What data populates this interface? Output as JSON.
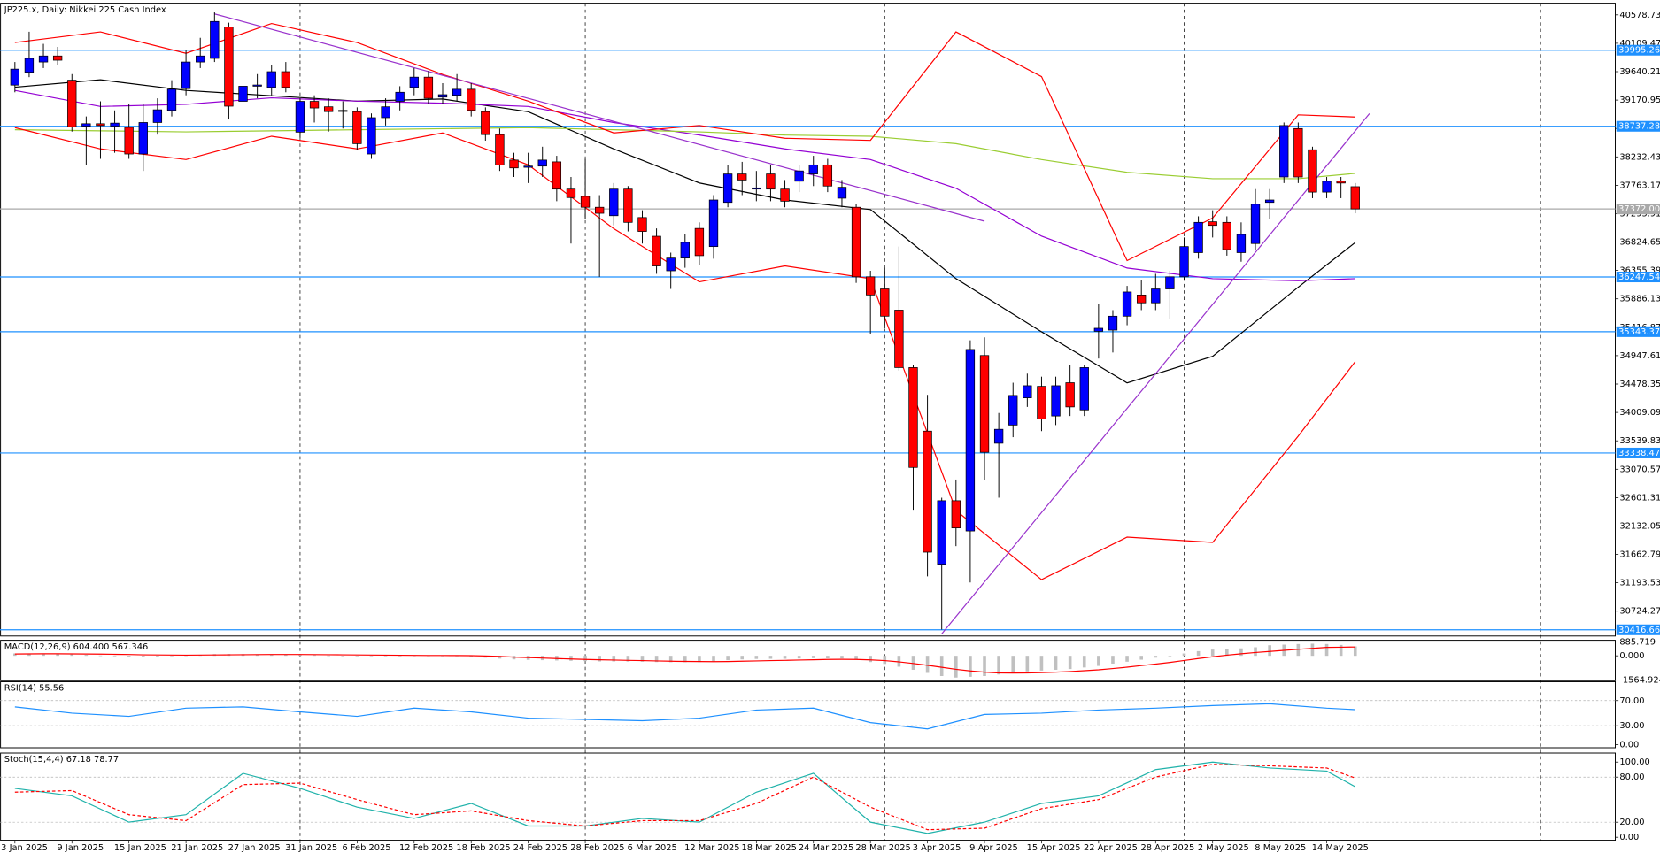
{
  "chart_data": [
    {
      "type": "candlestick",
      "title": "JP225.x, Daily:  Nikkei 225 Cash Index",
      "categories": [
        "3 Jan 2025",
        null,
        null,
        null,
        "9 Jan 2025",
        null,
        null,
        null,
        "15 Jan 2025",
        null,
        null,
        null,
        "21 Jan 2025",
        null,
        null,
        null,
        "27 Jan 2025",
        null,
        null,
        null,
        "31 Jan 2025",
        null,
        null,
        null,
        "6 Feb 2025",
        null,
        null,
        null,
        "12 Feb 2025",
        null,
        null,
        null,
        "18 Feb 2025",
        null,
        null,
        null,
        "24 Feb 2025",
        null,
        null,
        null,
        "28 Feb 2025",
        null,
        null,
        null,
        "6 Mar 2025",
        null,
        null,
        null,
        "12 Mar 2025",
        null,
        null,
        null,
        "18 Mar 2025",
        null,
        null,
        null,
        "24 Mar 2025",
        null,
        null,
        null,
        "28 Mar 2025",
        null,
        null,
        null,
        "3 Apr 2025",
        null,
        null,
        null,
        "9 Apr 2025",
        null,
        null,
        null,
        "15 Apr 2025",
        null,
        null,
        null,
        "22 Apr 2025",
        null,
        null,
        null,
        "28 Apr 2025",
        null,
        null,
        null,
        "2 May 2025",
        null,
        null,
        null,
        "8 May 2025",
        null,
        null,
        null,
        "14 May 2025",
        null,
        null
      ],
      "open": [
        39418,
        39630,
        39800,
        39900,
        39500,
        38740,
        38780,
        38740,
        38720,
        38280,
        38800,
        39000,
        39360,
        39800,
        39860,
        40380,
        39150,
        39400,
        39380,
        39640,
        38640,
        39150,
        39060,
        39000,
        38980,
        38280,
        38880,
        39150,
        39380,
        39550,
        39220,
        39250,
        39350,
        38980,
        38600,
        38180,
        38060,
        38080,
        38150,
        37700,
        37580,
        37400,
        37260,
        37700,
        37230,
        36920,
        36350,
        36560,
        37050,
        36750,
        37480,
        37950,
        37700,
        37950,
        37700,
        37830,
        37950,
        38100,
        37550,
        37400,
        36250,
        36050,
        35700,
        34750,
        33700,
        31500,
        32550,
        32050,
        34950,
        33500,
        33800,
        34250,
        34440,
        33950,
        34500,
        34050,
        35350,
        35370,
        35600,
        35950,
        35820,
        36050,
        36250,
        36650,
        37160,
        37150,
        36650,
        36800,
        37480,
        37900,
        38700,
        38350,
        37650,
        37830,
        37740
      ],
      "high": [
        39800,
        40300,
        40100,
        40050,
        39600,
        38900,
        39150,
        39000,
        39100,
        39100,
        39200,
        39500,
        40000,
        40200,
        40620,
        40450,
        39500,
        39600,
        39750,
        39800,
        39200,
        39250,
        39200,
        39150,
        39050,
        38950,
        39200,
        39400,
        39700,
        39650,
        39450,
        39600,
        39450,
        39050,
        38700,
        38300,
        38300,
        38400,
        38250,
        37900,
        38200,
        37600,
        37800,
        37750,
        37350,
        37050,
        36650,
        36950,
        37150,
        37600,
        38100,
        38150,
        38000,
        38100,
        37850,
        38100,
        38250,
        38200,
        37850,
        37450,
        36350,
        36400,
        36750,
        34800,
        34300,
        32600,
        32900,
        35200,
        35250,
        34000,
        34500,
        34650,
        34600,
        34600,
        34800,
        34800,
        35800,
        35700,
        36100,
        36200,
        36300,
        36350,
        36900,
        37250,
        37350,
        37250,
        37150,
        37700,
        37700,
        38800,
        38800,
        38400,
        37900,
        37900,
        37800
      ],
      "low": [
        39300,
        39550,
        39700,
        39750,
        38650,
        38100,
        38200,
        38300,
        38200,
        38000,
        38600,
        38900,
        39250,
        39700,
        39800,
        38850,
        38900,
        39200,
        39250,
        39300,
        38550,
        38800,
        38650,
        38700,
        38350,
        38200,
        38750,
        39000,
        39250,
        39100,
        39100,
        39150,
        38900,
        38500,
        38000,
        37900,
        37800,
        37900,
        37500,
        36800,
        37200,
        36250,
        37100,
        37000,
        36800,
        36300,
        36050,
        36400,
        36450,
        36550,
        37400,
        37600,
        37500,
        37500,
        37400,
        37650,
        37750,
        37650,
        37400,
        36150,
        35300,
        35400,
        34700,
        32400,
        31300,
        30420,
        31800,
        31200,
        32900,
        32600,
        33600,
        34100,
        33700,
        33800,
        33950,
        33950,
        34900,
        35000,
        35450,
        35700,
        35700,
        35550,
        36200,
        36550,
        36900,
        36600,
        36500,
        36700,
        37200,
        37800,
        37800,
        37550,
        37550,
        37550,
        37300
      ],
      "close": [
        39682,
        39860,
        39900,
        39830,
        38730,
        38780,
        38750,
        38790,
        38280,
        38800,
        39010,
        39350,
        39800,
        39900,
        40470,
        39070,
        39400,
        39420,
        39640,
        39380,
        39150,
        39040,
        38980,
        39000,
        38450,
        38880,
        39060,
        39300,
        39550,
        39200,
        39260,
        39350,
        39000,
        38600,
        38100,
        38050,
        38080,
        38180,
        37700,
        37560,
        37400,
        37300,
        37700,
        37150,
        37000,
        36430,
        36560,
        36820,
        36600,
        37520,
        37950,
        37850,
        37720,
        37700,
        37500,
        38000,
        38100,
        37750,
        37730,
        36250,
        35950,
        35600,
        34750,
        33100,
        31700,
        32550,
        32100,
        35050,
        33350,
        33730,
        34290,
        34450,
        33900,
        34450,
        34100,
        34750,
        35400,
        35600,
        36000,
        35820,
        36050,
        36250,
        36750,
        37150,
        37100,
        36700,
        36950,
        37450,
        37520,
        38750,
        37900,
        37650,
        37830,
        37800,
        37372
      ],
      "up_color": "#0000ff",
      "down_color": "#ff0000",
      "series": [
        {
          "color": "#000000",
          "x": [
            0,
            6,
            12,
            18,
            24,
            30,
            36,
            42,
            48,
            54,
            60,
            66,
            72,
            78,
            84,
            90,
            94
          ],
          "values": [
            39383,
            39506,
            39330,
            39242,
            39154,
            39189,
            38978,
            38364,
            37801,
            37520,
            37362,
            36219,
            35340,
            34497,
            34937,
            36079,
            36817
          ]
        },
        {
          "color": "#9400d3",
          "x": [
            0,
            6,
            12,
            18,
            24,
            30,
            36,
            42,
            48,
            54,
            60,
            66,
            72,
            78,
            84,
            90,
            94
          ],
          "values": [
            39330,
            39066,
            39101,
            39207,
            39154,
            39119,
            39066,
            38800,
            38592,
            38364,
            38188,
            37713,
            36923,
            36396,
            36220,
            36185,
            36220
          ]
        },
        {
          "color": "#9acd32",
          "x": [
            0,
            6,
            12,
            18,
            24,
            30,
            36,
            42,
            48,
            54,
            60,
            66,
            72,
            78,
            84,
            90,
            94
          ],
          "values": [
            38680,
            38662,
            38645,
            38662,
            38680,
            38698,
            38715,
            38680,
            38645,
            38592,
            38574,
            38451,
            38188,
            37977,
            37872,
            37872,
            37960
          ]
        },
        {
          "color": "#ff0000",
          "x": [
            0,
            6,
            12,
            18,
            24,
            30,
            36,
            42,
            48,
            54,
            60,
            66,
            72,
            78,
            84,
            90,
            94
          ],
          "values": [
            40121,
            40297,
            39945,
            40437,
            40121,
            39594,
            39154,
            38627,
            38750,
            38539,
            38504,
            40297,
            39559,
            36518,
            37221,
            38926,
            38891
          ]
        },
        {
          "color": "#ff0000",
          "x": [
            0,
            6,
            12,
            18,
            24,
            30,
            36,
            42,
            48,
            54,
            60,
            66,
            72,
            78,
            84,
            90,
            94
          ],
          "values": [
            38715,
            38364,
            38188,
            38574,
            38364,
            38627,
            38100,
            37045,
            36167,
            36430,
            36219,
            32388,
            31245,
            31948,
            31860,
            33618,
            34849
          ]
        }
      ],
      "trendlines": [
        {
          "color": "#9932cc",
          "x": [
            14,
            68
          ],
          "values": [
            40595,
            37168
          ]
        },
        {
          "color": "#9932cc",
          "x": [
            65,
            95
          ],
          "values": [
            30350,
            38947
          ]
        }
      ],
      "levels": [
        {
          "value": 39995.26,
          "color": "#1e90ff"
        },
        {
          "value": 38737.28,
          "color": "#1e90ff"
        },
        {
          "value": 37372,
          "label": "37372.00",
          "color": "#a9a9a9"
        },
        {
          "value": 36247.54,
          "color": "#1e90ff"
        },
        {
          "value": 35343.37,
          "color": "#1e90ff"
        },
        {
          "value": 33338.47,
          "color": "#1e90ff"
        },
        {
          "value": 30416.66,
          "color": "#1e90ff"
        }
      ],
      "month_lines": [
        20,
        40,
        61,
        82,
        107
      ],
      "ylim": [
        30314,
        40772
      ],
      "yticks": [
        40578.73,
        40109.47,
        39640.21,
        39170.95,
        38701.69,
        38232.43,
        37763.17,
        37293.91,
        36824.65,
        36355.39,
        35886.13,
        35416.87,
        34947.61,
        34478.35,
        34009.09,
        33539.83,
        33070.57,
        32601.31,
        32132.05,
        31662.79,
        31193.53,
        30724.27
      ]
    },
    {
      "type": "macd",
      "title": "MACD(12,26,9) 604.400 567.346",
      "color": "#c0c0c0",
      "values": [
        150,
        150,
        140,
        130,
        100,
        60,
        20,
        -20,
        -60,
        -80,
        -60,
        -20,
        20,
        60,
        110,
        120,
        110,
        100,
        90,
        80,
        60,
        40,
        20,
        0,
        -20,
        -20,
        -10,
        0,
        10,
        10,
        0,
        -20,
        -60,
        -120,
        -180,
        -230,
        -260,
        -280,
        -300,
        -320,
        -340,
        -360,
        -360,
        -370,
        -380,
        -400,
        -410,
        -410,
        -400,
        -350,
        -280,
        -230,
        -200,
        -190,
        -190,
        -170,
        -150,
        -160,
        -170,
        -250,
        -400,
        -520,
        -700,
        -900,
        -1100,
        -1300,
        -1400,
        -1350,
        -1300,
        -1200,
        -1100,
        -1000,
        -950,
        -900,
        -850,
        -750,
        -650,
        -500,
        -380,
        -250,
        -120,
        0,
        150,
        300,
        400,
        450,
        480,
        550,
        680,
        720,
        760,
        780,
        760,
        700,
        604.4
      ],
      "series": [
        {
          "color": "#ff0000",
          "values": [
            120,
            125,
            128,
            128,
            125,
            118,
            108,
            95,
            80,
            65,
            55,
            48,
            45,
            48,
            55,
            65,
            72,
            78,
            82,
            84,
            82,
            78,
            72,
            65,
            56,
            48,
            40,
            34,
            29,
            25,
            20,
            16,
            8,
            -10,
            -40,
            -80,
            -115,
            -145,
            -175,
            -205,
            -230,
            -255,
            -275,
            -295,
            -310,
            -330,
            -345,
            -360,
            -370,
            -375,
            -365,
            -350,
            -330,
            -310,
            -290,
            -270,
            -250,
            -235,
            -225,
            -230,
            -260,
            -310,
            -390,
            -490,
            -610,
            -740,
            -870,
            -970,
            -1050,
            -1100,
            -1110,
            -1100,
            -1080,
            -1050,
            -1010,
            -960,
            -900,
            -820,
            -730,
            -630,
            -530,
            -420,
            -300,
            -180,
            -60,
            40,
            130,
            210,
            280,
            350,
            420,
            480,
            540,
            555,
            567.346
          ]
        }
      ],
      "ylim": [
        -1600,
        1000
      ],
      "yticks": [
        885.719,
        {
          "value": 0,
          "label": "0.000"
        },
        -1564.924
      ]
    },
    {
      "type": "line",
      "title": "RSI(14) 55.56",
      "series": [
        {
          "color": "#1e90ff",
          "x": [
            0,
            4,
            8,
            12,
            16,
            20,
            24,
            28,
            32,
            36,
            40,
            44,
            48,
            52,
            56,
            60,
            64,
            68,
            72,
            76,
            80,
            84,
            88,
            92,
            94
          ],
          "values": [
            60,
            50,
            45,
            58,
            60,
            52,
            45,
            58,
            52,
            42,
            40,
            38,
            42,
            55,
            58,
            35,
            25,
            48,
            50,
            55,
            58,
            62,
            65,
            58,
            55.56
          ]
        }
      ],
      "levels": [
        70,
        30
      ],
      "ylim": [
        -5,
        100
      ],
      "yticks": [
        {
          "value": 70,
          "label": "70.00"
        },
        {
          "value": 30,
          "label": "30.00"
        },
        {
          "value": 0,
          "label": "0.00"
        }
      ]
    },
    {
      "type": "line",
      "title": "Stoch(15,4,4) 67.18 78.77",
      "series": [
        {
          "color": "#20b2aa",
          "x": [
            0,
            4,
            8,
            12,
            16,
            20,
            24,
            28,
            32,
            36,
            40,
            44,
            48,
            52,
            56,
            60,
            64,
            68,
            72,
            76,
            80,
            84,
            88,
            92,
            94
          ],
          "values": [
            65,
            55,
            20,
            30,
            85,
            65,
            40,
            25,
            45,
            15,
            15,
            25,
            20,
            60,
            85,
            20,
            5,
            20,
            45,
            55,
            90,
            100,
            92,
            88,
            67.18
          ]
        },
        {
          "color": "#ff0000",
          "dashed": true,
          "x": [
            0,
            4,
            8,
            12,
            16,
            20,
            24,
            28,
            32,
            36,
            40,
            44,
            48,
            52,
            56,
            60,
            64,
            68,
            72,
            76,
            80,
            84,
            88,
            92,
            94
          ],
          "values": [
            60,
            62,
            30,
            22,
            70,
            72,
            50,
            30,
            35,
            22,
            15,
            22,
            22,
            45,
            80,
            40,
            10,
            12,
            38,
            50,
            80,
            97,
            95,
            92,
            78.77
          ]
        }
      ],
      "levels": [
        80,
        20
      ],
      "ylim": [
        -4,
        112
      ],
      "yticks": [
        {
          "value": 100,
          "label": "100.00"
        },
        {
          "value": 80,
          "label": "80.00"
        },
        {
          "value": 20,
          "label": "20.00"
        },
        {
          "value": 0,
          "label": "0.00"
        }
      ]
    }
  ]
}
